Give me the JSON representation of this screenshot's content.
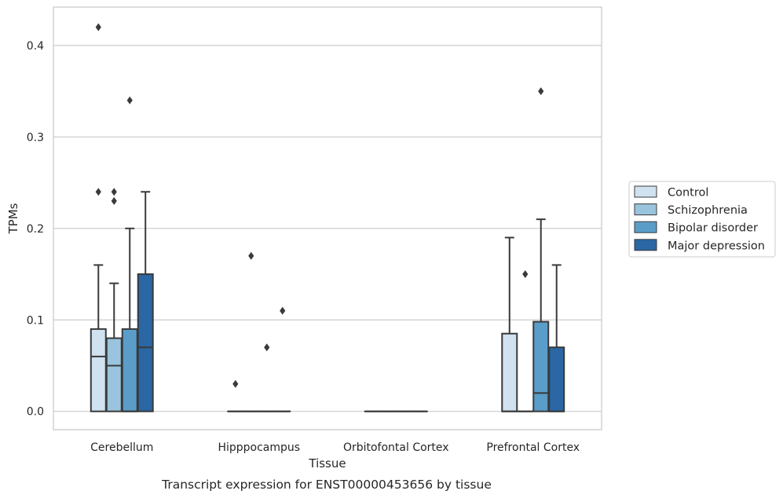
{
  "caption": "Transcript expression for ENST00000453656 by tissue",
  "chart_data": {
    "type": "boxplot",
    "xlabel": "Tissue",
    "ylabel": "TPMs",
    "ylim": [
      -0.02,
      0.442
    ],
    "yticks": [
      0.0,
      0.1,
      0.2,
      0.3,
      0.4
    ],
    "ytick_labels": [
      "0.0",
      "0.1",
      "0.2",
      "0.3",
      "0.4"
    ],
    "grid": "horizontal",
    "legend_position": "right",
    "categories": [
      "Cerebellum",
      "Hipppocampus",
      "Orbitofontal Cortex",
      "Prefrontal Cortex"
    ],
    "series": [
      {
        "name": "Control",
        "color": "#d0e1f0",
        "boxes": [
          {
            "whislo": 0.0,
            "q1": 0.0,
            "med": 0.06,
            "q3": 0.09,
            "whishi": 0.16,
            "fliers": [
              0.42,
              0.24
            ]
          },
          {
            "whislo": 0.0,
            "q1": 0.0,
            "med": 0.0,
            "q3": 0.0,
            "whishi": 0.0,
            "fliers": [
              0.03
            ]
          },
          {
            "whislo": 0.0,
            "q1": 0.0,
            "med": 0.0,
            "q3": 0.0,
            "whishi": 0.0,
            "fliers": []
          },
          {
            "whislo": 0.0,
            "q1": 0.0,
            "med": 0.0,
            "q3": 0.085,
            "whishi": 0.19,
            "fliers": []
          }
        ]
      },
      {
        "name": "Schizophrenia",
        "color": "#9ac4de",
        "boxes": [
          {
            "whislo": 0.0,
            "q1": 0.0,
            "med": 0.05,
            "q3": 0.08,
            "whishi": 0.14,
            "fliers": [
              0.24,
              0.23
            ]
          },
          {
            "whislo": 0.0,
            "q1": 0.0,
            "med": 0.0,
            "q3": 0.0,
            "whishi": 0.0,
            "fliers": [
              0.17
            ]
          },
          {
            "whislo": 0.0,
            "q1": 0.0,
            "med": 0.0,
            "q3": 0.0,
            "whishi": 0.0,
            "fliers": []
          },
          {
            "whislo": 0.0,
            "q1": 0.0,
            "med": 0.0,
            "q3": 0.0,
            "whishi": 0.0,
            "fliers": [
              0.15
            ]
          }
        ]
      },
      {
        "name": "Bipolar disorder",
        "color": "#5b9dc9",
        "boxes": [
          {
            "whislo": 0.0,
            "q1": 0.0,
            "med": 0.0,
            "q3": 0.09,
            "whishi": 0.2,
            "fliers": [
              0.34
            ]
          },
          {
            "whislo": 0.0,
            "q1": 0.0,
            "med": 0.0,
            "q3": 0.0,
            "whishi": 0.0,
            "fliers": [
              0.07
            ]
          },
          {
            "whislo": 0.0,
            "q1": 0.0,
            "med": 0.0,
            "q3": 0.0,
            "whishi": 0.0,
            "fliers": []
          },
          {
            "whislo": 0.0,
            "q1": 0.0,
            "med": 0.02,
            "q3": 0.098,
            "whishi": 0.21,
            "fliers": [
              0.35
            ]
          }
        ]
      },
      {
        "name": "Major depression",
        "color": "#2a67a4",
        "boxes": [
          {
            "whislo": 0.0,
            "q1": 0.0,
            "med": 0.07,
            "q3": 0.15,
            "whishi": 0.24,
            "fliers": []
          },
          {
            "whislo": 0.0,
            "q1": 0.0,
            "med": 0.0,
            "q3": 0.0,
            "whishi": 0.0,
            "fliers": [
              0.11
            ]
          },
          {
            "whislo": 0.0,
            "q1": 0.0,
            "med": 0.0,
            "q3": 0.0,
            "whishi": 0.0,
            "fliers": []
          },
          {
            "whislo": 0.0,
            "q1": 0.0,
            "med": 0.0,
            "q3": 0.07,
            "whishi": 0.16,
            "fliers": []
          }
        ]
      }
    ]
  }
}
